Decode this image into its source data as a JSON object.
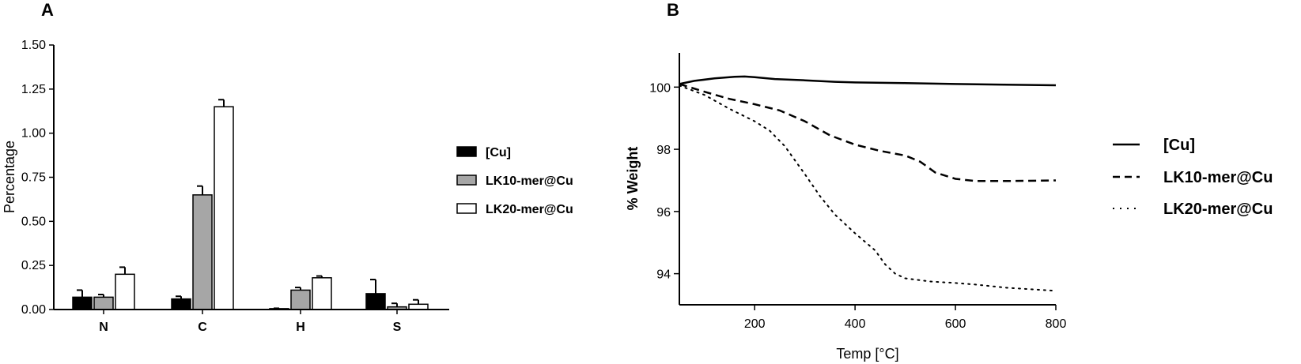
{
  "panels": {
    "a_letter": "A",
    "b_letter": "B"
  },
  "chart_data": [
    {
      "type": "bar",
      "ylabel": "Percentage",
      "xlabel": "",
      "ylim": [
        0,
        1.5
      ],
      "yticks": [
        "0.00",
        "0.25",
        "0.50",
        "0.75",
        "1.00",
        "1.25",
        "1.50"
      ],
      "categories": [
        "N",
        "C",
        "H",
        "S"
      ],
      "legend_position": "right",
      "series": [
        {
          "name": "[Cu]",
          "color": "#000000",
          "values": [
            0.07,
            0.06,
            0.005,
            0.09
          ],
          "errors": [
            0.04,
            0.015,
            0.002,
            0.08
          ]
        },
        {
          "name": "LK10-mer@Cu",
          "color": "#a6a6a6",
          "values": [
            0.07,
            0.65,
            0.11,
            0.015
          ],
          "errors": [
            0.015,
            0.05,
            0.015,
            0.02
          ]
        },
        {
          "name": "LK20-mer@Cu",
          "color": "#ffffff",
          "values": [
            0.2,
            1.15,
            0.18,
            0.03
          ],
          "errors": [
            0.04,
            0.04,
            0.01,
            0.025
          ]
        }
      ]
    },
    {
      "type": "line",
      "xlabel": "Temp [°C]",
      "ylabel": "% Weight",
      "xlim": [
        50,
        800
      ],
      "ylim": [
        93.0,
        101.1
      ],
      "xticks": [
        "200",
        "400",
        "600",
        "800"
      ],
      "yticks": [
        "94",
        "96",
        "98",
        "100"
      ],
      "legend_position": "right",
      "series": [
        {
          "name": "[Cu]",
          "dash": "solid",
          "x": [
            50,
            80,
            120,
            160,
            180,
            200,
            240,
            300,
            360,
            400,
            500,
            600,
            700,
            800
          ],
          "y": [
            100.1,
            100.2,
            100.28,
            100.33,
            100.34,
            100.32,
            100.26,
            100.22,
            100.17,
            100.15,
            100.13,
            100.1,
            100.08,
            100.06
          ]
        },
        {
          "name": "LK10-mer@Cu",
          "dash": "dashed",
          "x": [
            50,
            100,
            150,
            200,
            250,
            300,
            350,
            400,
            450,
            500,
            530,
            560,
            600,
            640,
            700,
            800
          ],
          "y": [
            100.1,
            99.85,
            99.62,
            99.45,
            99.25,
            98.9,
            98.45,
            98.15,
            97.95,
            97.8,
            97.6,
            97.25,
            97.05,
            96.98,
            96.98,
            97.0
          ]
        },
        {
          "name": "LK20-mer@Cu",
          "dash": "dotted",
          "x": [
            50,
            100,
            150,
            200,
            230,
            260,
            300,
            330,
            360,
            400,
            440,
            460,
            480,
            500,
            550,
            600,
            640,
            700,
            800
          ],
          "y": [
            100.05,
            99.75,
            99.3,
            98.9,
            98.6,
            98.1,
            97.2,
            96.5,
            95.9,
            95.3,
            94.75,
            94.3,
            94.0,
            93.85,
            93.75,
            93.7,
            93.65,
            93.55,
            93.45
          ]
        }
      ]
    }
  ]
}
